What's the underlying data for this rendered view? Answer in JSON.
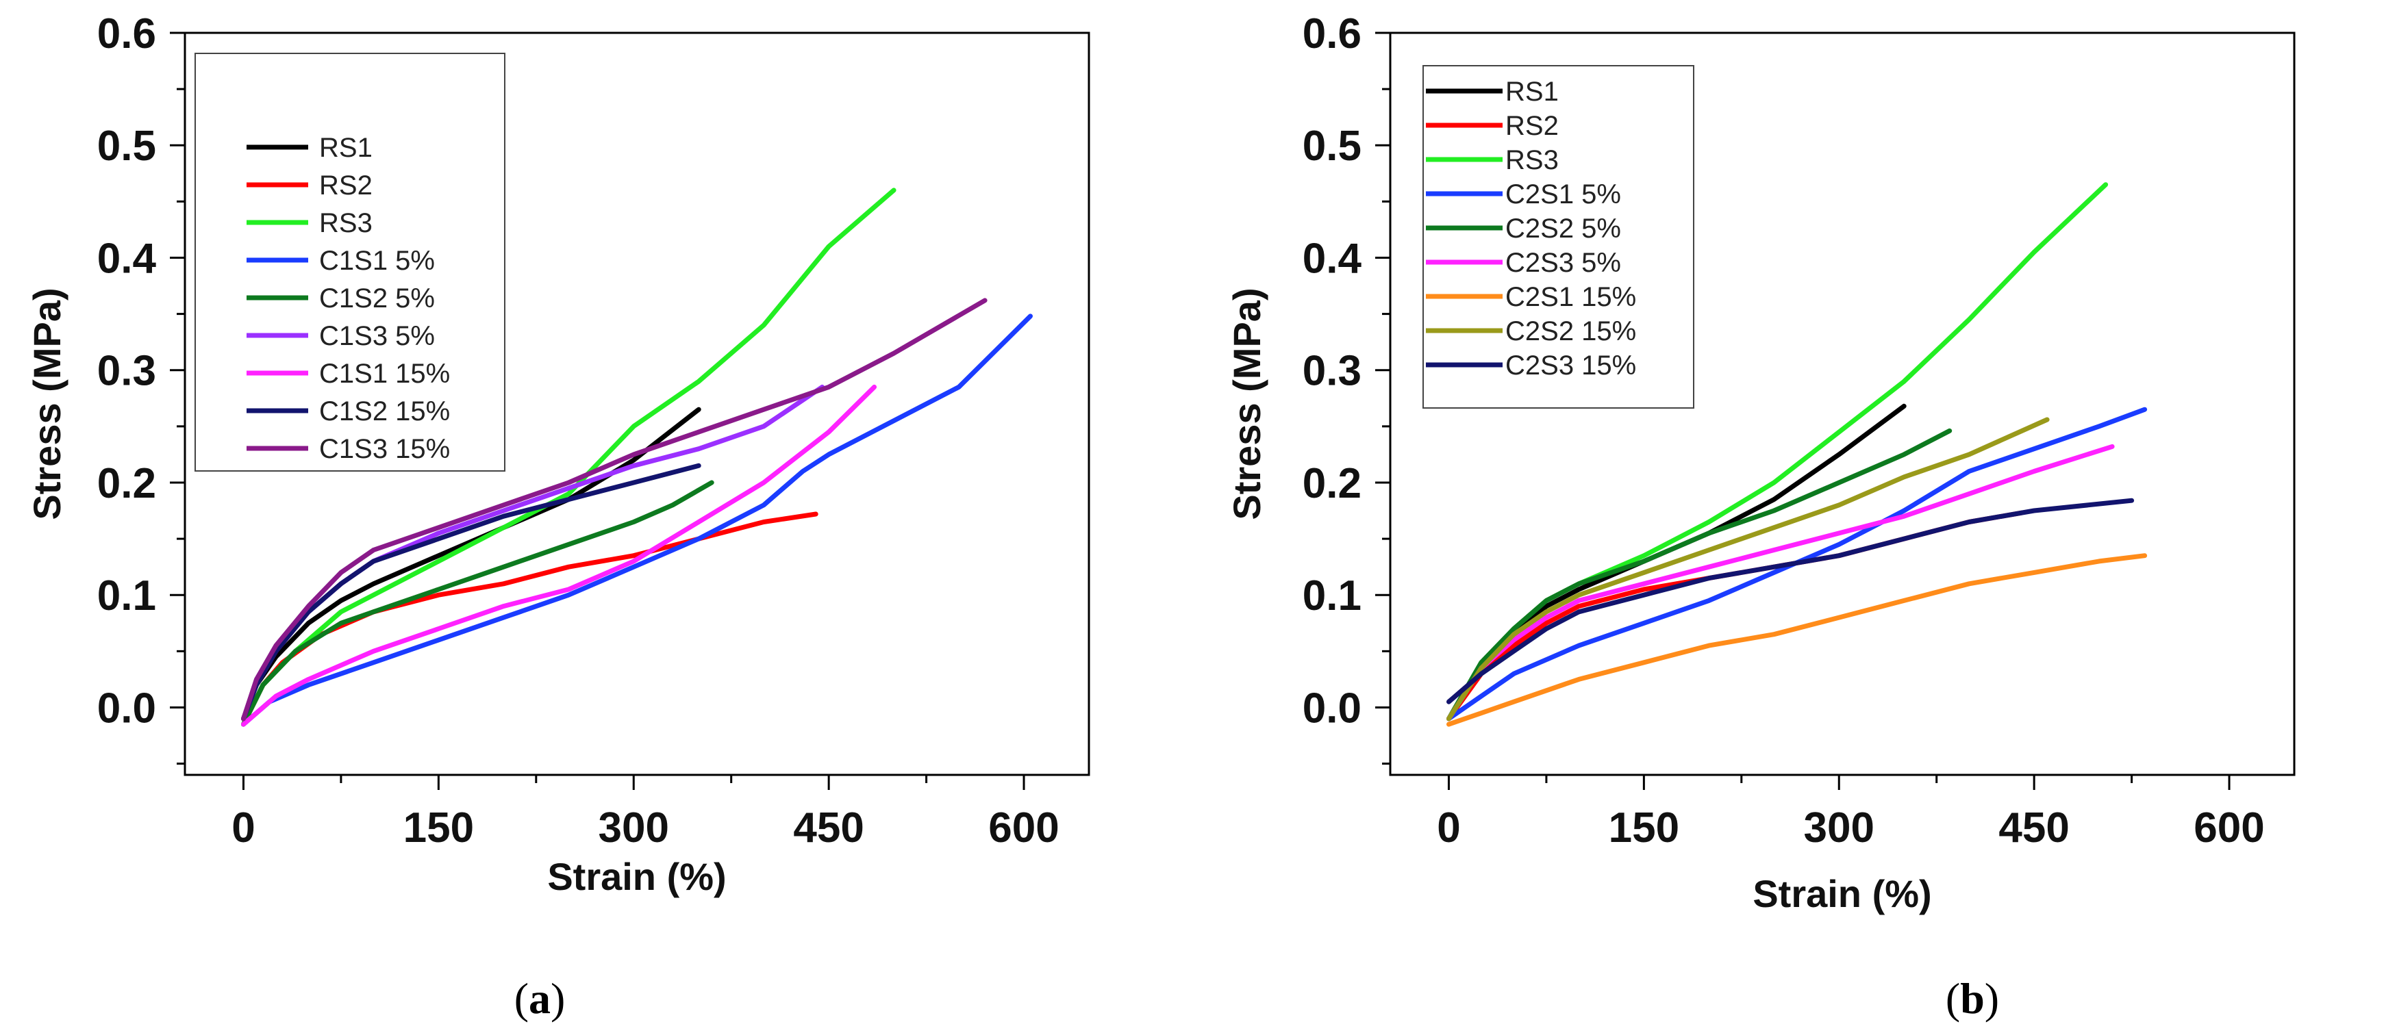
{
  "figure": {
    "captions": [
      {
        "open": "(",
        "letter": "a",
        "close": ")"
      },
      {
        "open": "(",
        "letter": "b",
        "close": ")"
      }
    ]
  },
  "chart_data": [
    {
      "type": "line",
      "panel": "a",
      "xlabel": "Strain (%)",
      "ylabel": "Stress (MPa)",
      "xlim": [
        -45,
        650
      ],
      "ylim": [
        -0.06,
        0.6
      ],
      "xticks": [
        0,
        150,
        300,
        450,
        600
      ],
      "xtick_labels": [
        "0",
        "150",
        "300",
        "450",
        "600"
      ],
      "yticks": [
        0.0,
        0.1,
        0.2,
        0.3,
        0.4,
        0.5,
        0.6
      ],
      "ytick_labels": [
        "0.0",
        "0.1",
        "0.2",
        "0.3",
        "0.4",
        "0.5",
        "0.6"
      ],
      "legend_position": "top-left",
      "series": [
        {
          "name": "RS1",
          "color": "#000000",
          "points": [
            [
              0,
              -0.01
            ],
            [
              10,
              0.02
            ],
            [
              25,
              0.045
            ],
            [
              50,
              0.075
            ],
            [
              75,
              0.095
            ],
            [
              100,
              0.11
            ],
            [
              150,
              0.135
            ],
            [
              200,
              0.16
            ],
            [
              250,
              0.185
            ],
            [
              300,
              0.22
            ],
            [
              350,
              0.265
            ]
          ]
        },
        {
          "name": "RS2",
          "color": "#ff0000",
          "points": [
            [
              0,
              -0.015
            ],
            [
              15,
              0.02
            ],
            [
              30,
              0.04
            ],
            [
              60,
              0.065
            ],
            [
              100,
              0.085
            ],
            [
              150,
              0.1
            ],
            [
              200,
              0.11
            ],
            [
              250,
              0.125
            ],
            [
              300,
              0.135
            ],
            [
              350,
              0.15
            ],
            [
              400,
              0.165
            ],
            [
              440,
              0.172
            ]
          ]
        },
        {
          "name": "RS3",
          "color": "#22ee22",
          "points": [
            [
              0,
              -0.015
            ],
            [
              15,
              0.02
            ],
            [
              40,
              0.05
            ],
            [
              75,
              0.085
            ],
            [
              100,
              0.1
            ],
            [
              150,
              0.13
            ],
            [
              200,
              0.16
            ],
            [
              250,
              0.19
            ],
            [
              300,
              0.25
            ],
            [
              350,
              0.29
            ],
            [
              400,
              0.34
            ],
            [
              450,
              0.41
            ],
            [
              500,
              0.46
            ]
          ]
        },
        {
          "name": "C1S1 5%",
          "color": "#1a3cff",
          "points": [
            [
              0,
              -0.015
            ],
            [
              20,
              0.005
            ],
            [
              50,
              0.02
            ],
            [
              100,
              0.04
            ],
            [
              150,
              0.06
            ],
            [
              200,
              0.08
            ],
            [
              250,
              0.1
            ],
            [
              300,
              0.125
            ],
            [
              350,
              0.15
            ],
            [
              400,
              0.18
            ],
            [
              430,
              0.21
            ],
            [
              450,
              0.225
            ],
            [
              500,
              0.255
            ],
            [
              550,
              0.285
            ],
            [
              605,
              0.348
            ]
          ]
        },
        {
          "name": "C1S2 5%",
          "color": "#0d7a1f",
          "points": [
            [
              0,
              -0.015
            ],
            [
              15,
              0.02
            ],
            [
              40,
              0.05
            ],
            [
              75,
              0.075
            ],
            [
              100,
              0.085
            ],
            [
              150,
              0.105
            ],
            [
              200,
              0.125
            ],
            [
              250,
              0.145
            ],
            [
              300,
              0.165
            ],
            [
              330,
              0.18
            ],
            [
              360,
              0.2
            ]
          ]
        },
        {
          "name": "C1S3 5%",
          "color": "#9b30ff",
          "points": [
            [
              0,
              -0.01
            ],
            [
              10,
              0.02
            ],
            [
              25,
              0.05
            ],
            [
              50,
              0.085
            ],
            [
              75,
              0.11
            ],
            [
              100,
              0.13
            ],
            [
              150,
              0.155
            ],
            [
              200,
              0.175
            ],
            [
              250,
              0.195
            ],
            [
              300,
              0.215
            ],
            [
              350,
              0.23
            ],
            [
              400,
              0.25
            ],
            [
              445,
              0.285
            ]
          ]
        },
        {
          "name": "C1S1 15%",
          "color": "#ff22ff",
          "points": [
            [
              0,
              -0.015
            ],
            [
              25,
              0.01
            ],
            [
              50,
              0.025
            ],
            [
              100,
              0.05
            ],
            [
              150,
              0.07
            ],
            [
              200,
              0.09
            ],
            [
              250,
              0.105
            ],
            [
              300,
              0.13
            ],
            [
              350,
              0.165
            ],
            [
              400,
              0.2
            ],
            [
              450,
              0.245
            ],
            [
              485,
              0.285
            ]
          ]
        },
        {
          "name": "C1S2 15%",
          "color": "#12146e",
          "points": [
            [
              0,
              -0.01
            ],
            [
              10,
              0.02
            ],
            [
              25,
              0.05
            ],
            [
              50,
              0.085
            ],
            [
              75,
              0.11
            ],
            [
              100,
              0.13
            ],
            [
              150,
              0.15
            ],
            [
              200,
              0.17
            ],
            [
              250,
              0.185
            ],
            [
              300,
              0.2
            ],
            [
              350,
              0.215
            ]
          ]
        },
        {
          "name": "C1S3 15%",
          "color": "#8a1a8a",
          "points": [
            [
              0,
              -0.01
            ],
            [
              10,
              0.025
            ],
            [
              25,
              0.055
            ],
            [
              50,
              0.09
            ],
            [
              75,
              0.12
            ],
            [
              100,
              0.14
            ],
            [
              150,
              0.16
            ],
            [
              200,
              0.18
            ],
            [
              250,
              0.2
            ],
            [
              300,
              0.225
            ],
            [
              350,
              0.245
            ],
            [
              400,
              0.265
            ],
            [
              450,
              0.285
            ],
            [
              500,
              0.315
            ],
            [
              570,
              0.362
            ]
          ]
        }
      ]
    },
    {
      "type": "line",
      "panel": "b",
      "xlabel": "Strain (%)",
      "ylabel": "Stress (MPa)",
      "xlim": [
        -45,
        650
      ],
      "ylim": [
        -0.06,
        0.6
      ],
      "xticks": [
        0,
        150,
        300,
        450,
        600
      ],
      "xtick_labels": [
        "0",
        "150",
        "300",
        "450",
        "600"
      ],
      "yticks": [
        0.0,
        0.1,
        0.2,
        0.3,
        0.4,
        0.5,
        0.6
      ],
      "ytick_labels": [
        "0.0",
        "0.1",
        "0.2",
        "0.3",
        "0.4",
        "0.5",
        "0.6"
      ],
      "legend_position": "top-left",
      "series": [
        {
          "name": "RS1",
          "color": "#000000",
          "points": [
            [
              0,
              -0.01
            ],
            [
              25,
              0.035
            ],
            [
              50,
              0.065
            ],
            [
              75,
              0.09
            ],
            [
              100,
              0.105
            ],
            [
              150,
              0.13
            ],
            [
              200,
              0.155
            ],
            [
              250,
              0.185
            ],
            [
              300,
              0.225
            ],
            [
              350,
              0.268
            ]
          ]
        },
        {
          "name": "RS2",
          "color": "#ff0000",
          "points": [
            [
              0,
              -0.01
            ],
            [
              25,
              0.03
            ],
            [
              50,
              0.055
            ],
            [
              75,
              0.075
            ],
            [
              100,
              0.09
            ],
            [
              150,
              0.105
            ],
            [
              200,
              0.115
            ],
            [
              250,
              0.125
            ],
            [
              300,
              0.135
            ],
            [
              350,
              0.15
            ],
            [
              400,
              0.165
            ],
            [
              440,
              0.173
            ]
          ]
        },
        {
          "name": "RS3",
          "color": "#22ee22",
          "points": [
            [
              0,
              -0.01
            ],
            [
              25,
              0.04
            ],
            [
              50,
              0.07
            ],
            [
              75,
              0.095
            ],
            [
              100,
              0.11
            ],
            [
              150,
              0.135
            ],
            [
              200,
              0.165
            ],
            [
              250,
              0.2
            ],
            [
              300,
              0.245
            ],
            [
              350,
              0.29
            ],
            [
              400,
              0.345
            ],
            [
              450,
              0.405
            ],
            [
              505,
              0.465
            ]
          ]
        },
        {
          "name": "C2S1 5%",
          "color": "#1a3cff",
          "points": [
            [
              0,
              -0.01
            ],
            [
              25,
              0.01
            ],
            [
              50,
              0.03
            ],
            [
              100,
              0.055
            ],
            [
              150,
              0.075
            ],
            [
              200,
              0.095
            ],
            [
              250,
              0.12
            ],
            [
              300,
              0.145
            ],
            [
              350,
              0.175
            ],
            [
              400,
              0.21
            ],
            [
              450,
              0.23
            ],
            [
              500,
              0.25
            ],
            [
              535,
              0.265
            ]
          ]
        },
        {
          "name": "C2S2 5%",
          "color": "#0d7a1f",
          "points": [
            [
              0,
              -0.01
            ],
            [
              25,
              0.04
            ],
            [
              50,
              0.07
            ],
            [
              75,
              0.095
            ],
            [
              100,
              0.11
            ],
            [
              150,
              0.13
            ],
            [
              200,
              0.155
            ],
            [
              250,
              0.175
            ],
            [
              300,
              0.2
            ],
            [
              350,
              0.225
            ],
            [
              385,
              0.246
            ]
          ]
        },
        {
          "name": "C2S3 5%",
          "color": "#ff22ff",
          "points": [
            [
              0,
              -0.01
            ],
            [
              25,
              0.035
            ],
            [
              50,
              0.06
            ],
            [
              75,
              0.08
            ],
            [
              100,
              0.095
            ],
            [
              150,
              0.11
            ],
            [
              200,
              0.125
            ],
            [
              250,
              0.14
            ],
            [
              300,
              0.155
            ],
            [
              350,
              0.17
            ],
            [
              400,
              0.19
            ],
            [
              450,
              0.21
            ],
            [
              510,
              0.232
            ]
          ]
        },
        {
          "name": "C2S1 15%",
          "color": "#ff8c1a",
          "points": [
            [
              0,
              -0.015
            ],
            [
              50,
              0.005
            ],
            [
              100,
              0.025
            ],
            [
              150,
              0.04
            ],
            [
              200,
              0.055
            ],
            [
              250,
              0.065
            ],
            [
              300,
              0.08
            ],
            [
              350,
              0.095
            ],
            [
              400,
              0.11
            ],
            [
              450,
              0.12
            ],
            [
              500,
              0.13
            ],
            [
              535,
              0.135
            ]
          ]
        },
        {
          "name": "C2S2 15%",
          "color": "#9a9a1a",
          "points": [
            [
              0,
              -0.01
            ],
            [
              25,
              0.035
            ],
            [
              50,
              0.065
            ],
            [
              75,
              0.085
            ],
            [
              100,
              0.1
            ],
            [
              150,
              0.12
            ],
            [
              200,
              0.14
            ],
            [
              250,
              0.16
            ],
            [
              300,
              0.18
            ],
            [
              350,
              0.205
            ],
            [
              400,
              0.225
            ],
            [
              460,
              0.256
            ]
          ]
        },
        {
          "name": "C2S3 15%",
          "color": "#12146e",
          "points": [
            [
              0,
              0.005
            ],
            [
              25,
              0.03
            ],
            [
              50,
              0.05
            ],
            [
              75,
              0.07
            ],
            [
              100,
              0.085
            ],
            [
              150,
              0.1
            ],
            [
              200,
              0.115
            ],
            [
              250,
              0.125
            ],
            [
              300,
              0.135
            ],
            [
              350,
              0.15
            ],
            [
              400,
              0.165
            ],
            [
              450,
              0.175
            ],
            [
              525,
              0.184
            ]
          ]
        }
      ]
    }
  ]
}
